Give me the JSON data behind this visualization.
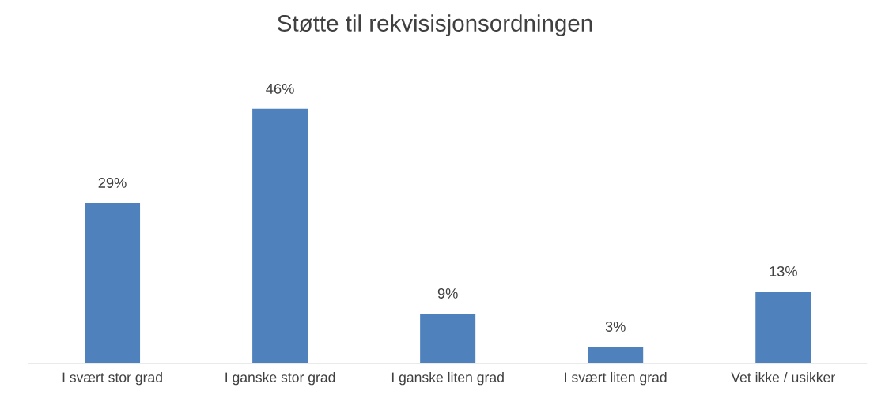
{
  "chart_data": {
    "type": "bar",
    "title": "Støtte til rekvisisjonsordningen",
    "categories": [
      "I svært stor grad",
      "I ganske stor grad",
      "I ganske liten grad",
      "I svært liten grad",
      "Vet ikke / usikker"
    ],
    "values": [
      29,
      46,
      9,
      3,
      13
    ],
    "value_labels": [
      "29%",
      "46%",
      "9%",
      "3%",
      "13%"
    ],
    "color": "#4f81bd"
  }
}
